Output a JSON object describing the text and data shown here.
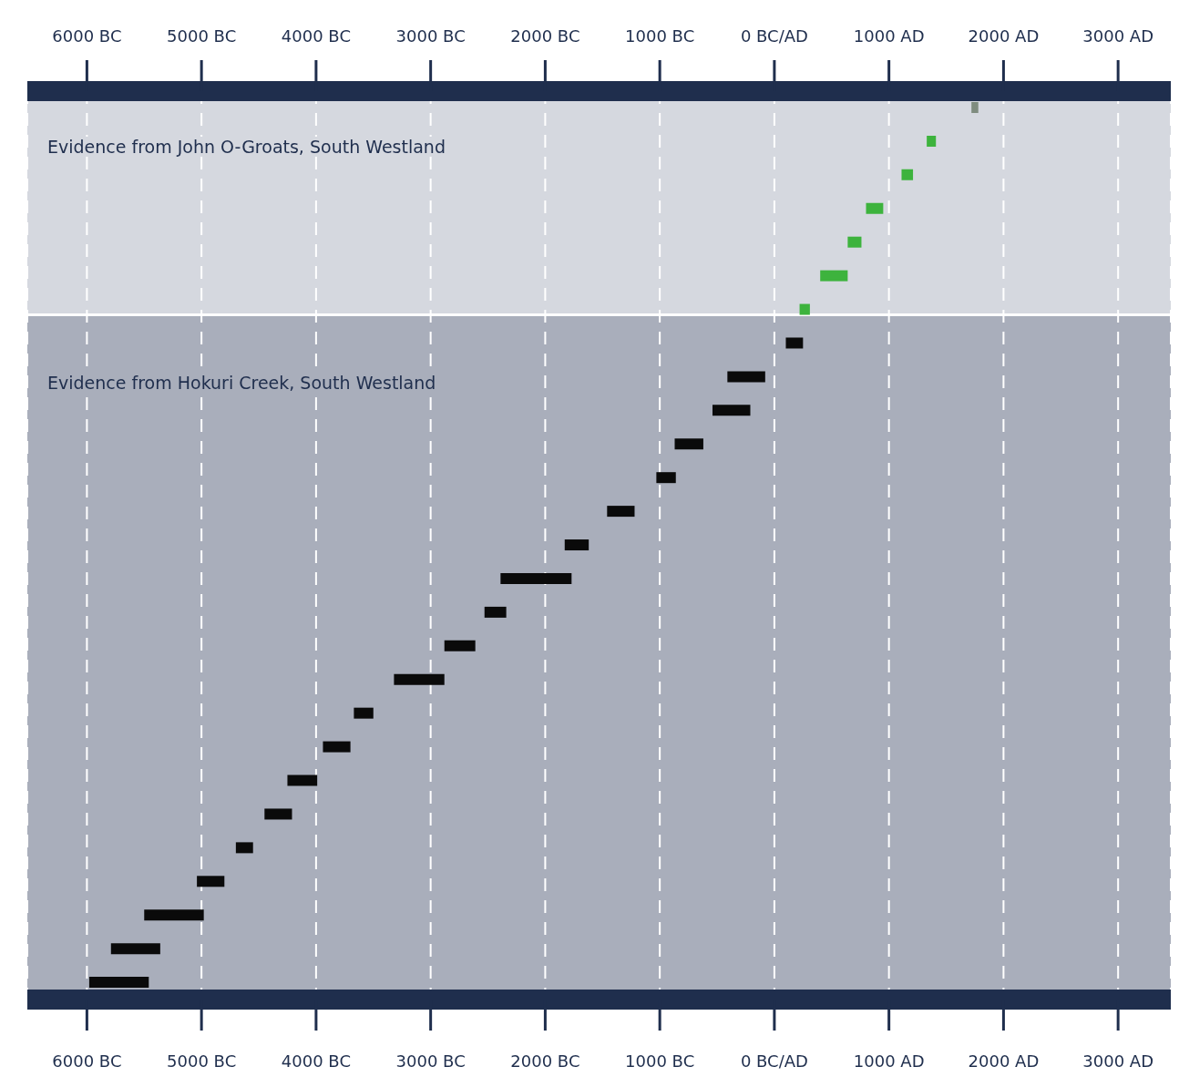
{
  "chart_data": {
    "type": "bar",
    "orientation": "horizontal",
    "categories": [
      null,
      null,
      null,
      null,
      null,
      null,
      null,
      null,
      null,
      null,
      null,
      null,
      null,
      null,
      null,
      null,
      null,
      null,
      null,
      null,
      null,
      null,
      null,
      null,
      null,
      null,
      null
    ],
    "base": [
      1720,
      1330,
      1110,
      800,
      640,
      400,
      220,
      100,
      -410,
      -540,
      -870,
      -1030,
      -1460,
      -1830,
      -2390,
      -2530,
      -2880,
      -3320,
      -3670,
      -3940,
      -4250,
      -4450,
      -4700,
      -5040,
      -5500,
      -5790,
      -5980
    ],
    "values": [
      60,
      80,
      100,
      150,
      120,
      240,
      90,
      150,
      330,
      330,
      250,
      170,
      240,
      210,
      620,
      190,
      270,
      440,
      170,
      240,
      260,
      240,
      150,
      240,
      520,
      430,
      520
    ],
    "colors": [
      "#7f8c7f",
      "#3db33d",
      "#3db33d",
      "#3db33d",
      "#3db33d",
      "#3db33d",
      "#3db33d",
      "#0a0a0a",
      "#0a0a0a",
      "#0a0a0a",
      "#0a0a0a",
      "#0a0a0a",
      "#0a0a0a",
      "#0a0a0a",
      "#0a0a0a",
      "#0a0a0a",
      "#0a0a0a",
      "#0a0a0a",
      "#0a0a0a",
      "#0a0a0a",
      "#0a0a0a",
      "#0a0a0a",
      "#0a0a0a",
      "#0a0a0a",
      "#0a0a0a",
      "#0a0a0a",
      "#0a0a0a"
    ],
    "xlim": [
      -6520,
      3460
    ],
    "xticks": [
      {
        "value": -6000,
        "label": "6000 BC"
      },
      {
        "value": -5000,
        "label": "5000 BC"
      },
      {
        "value": -4000,
        "label": "4000 BC"
      },
      {
        "value": -3000,
        "label": "3000 BC"
      },
      {
        "value": -2000,
        "label": "2000 BC"
      },
      {
        "value": -1000,
        "label": "1000 BC"
      },
      {
        "value": 0,
        "label": "0 BC/AD"
      },
      {
        "value": 1000,
        "label": "1000 AD"
      },
      {
        "value": 2000,
        "label": "2000 AD"
      },
      {
        "value": 3000,
        "label": "3000 AD"
      }
    ],
    "x2lim": [
      -6520,
      3460
    ],
    "x2ticks": [
      {
        "value": -6000,
        "label": "6000 BC"
      },
      {
        "value": -5000,
        "label": "5000 BC"
      },
      {
        "value": -4000,
        "label": "4000 BC"
      },
      {
        "value": -3000,
        "label": "3000 BC"
      },
      {
        "value": -2000,
        "label": "2000 BC"
      },
      {
        "value": -1000,
        "label": "1000 BC"
      },
      {
        "value": 0,
        "label": "0 BC/AD"
      },
      {
        "value": 1000,
        "label": "1000 AD"
      },
      {
        "value": 2000,
        "label": "2000 AD"
      },
      {
        "value": 3000,
        "label": "3000 AD"
      }
    ],
    "grid": "x",
    "annotations": [
      "Evidence from John O-Groats, South Westland",
      "Evidence from Hokuri Creek, South Westland"
    ]
  }
}
